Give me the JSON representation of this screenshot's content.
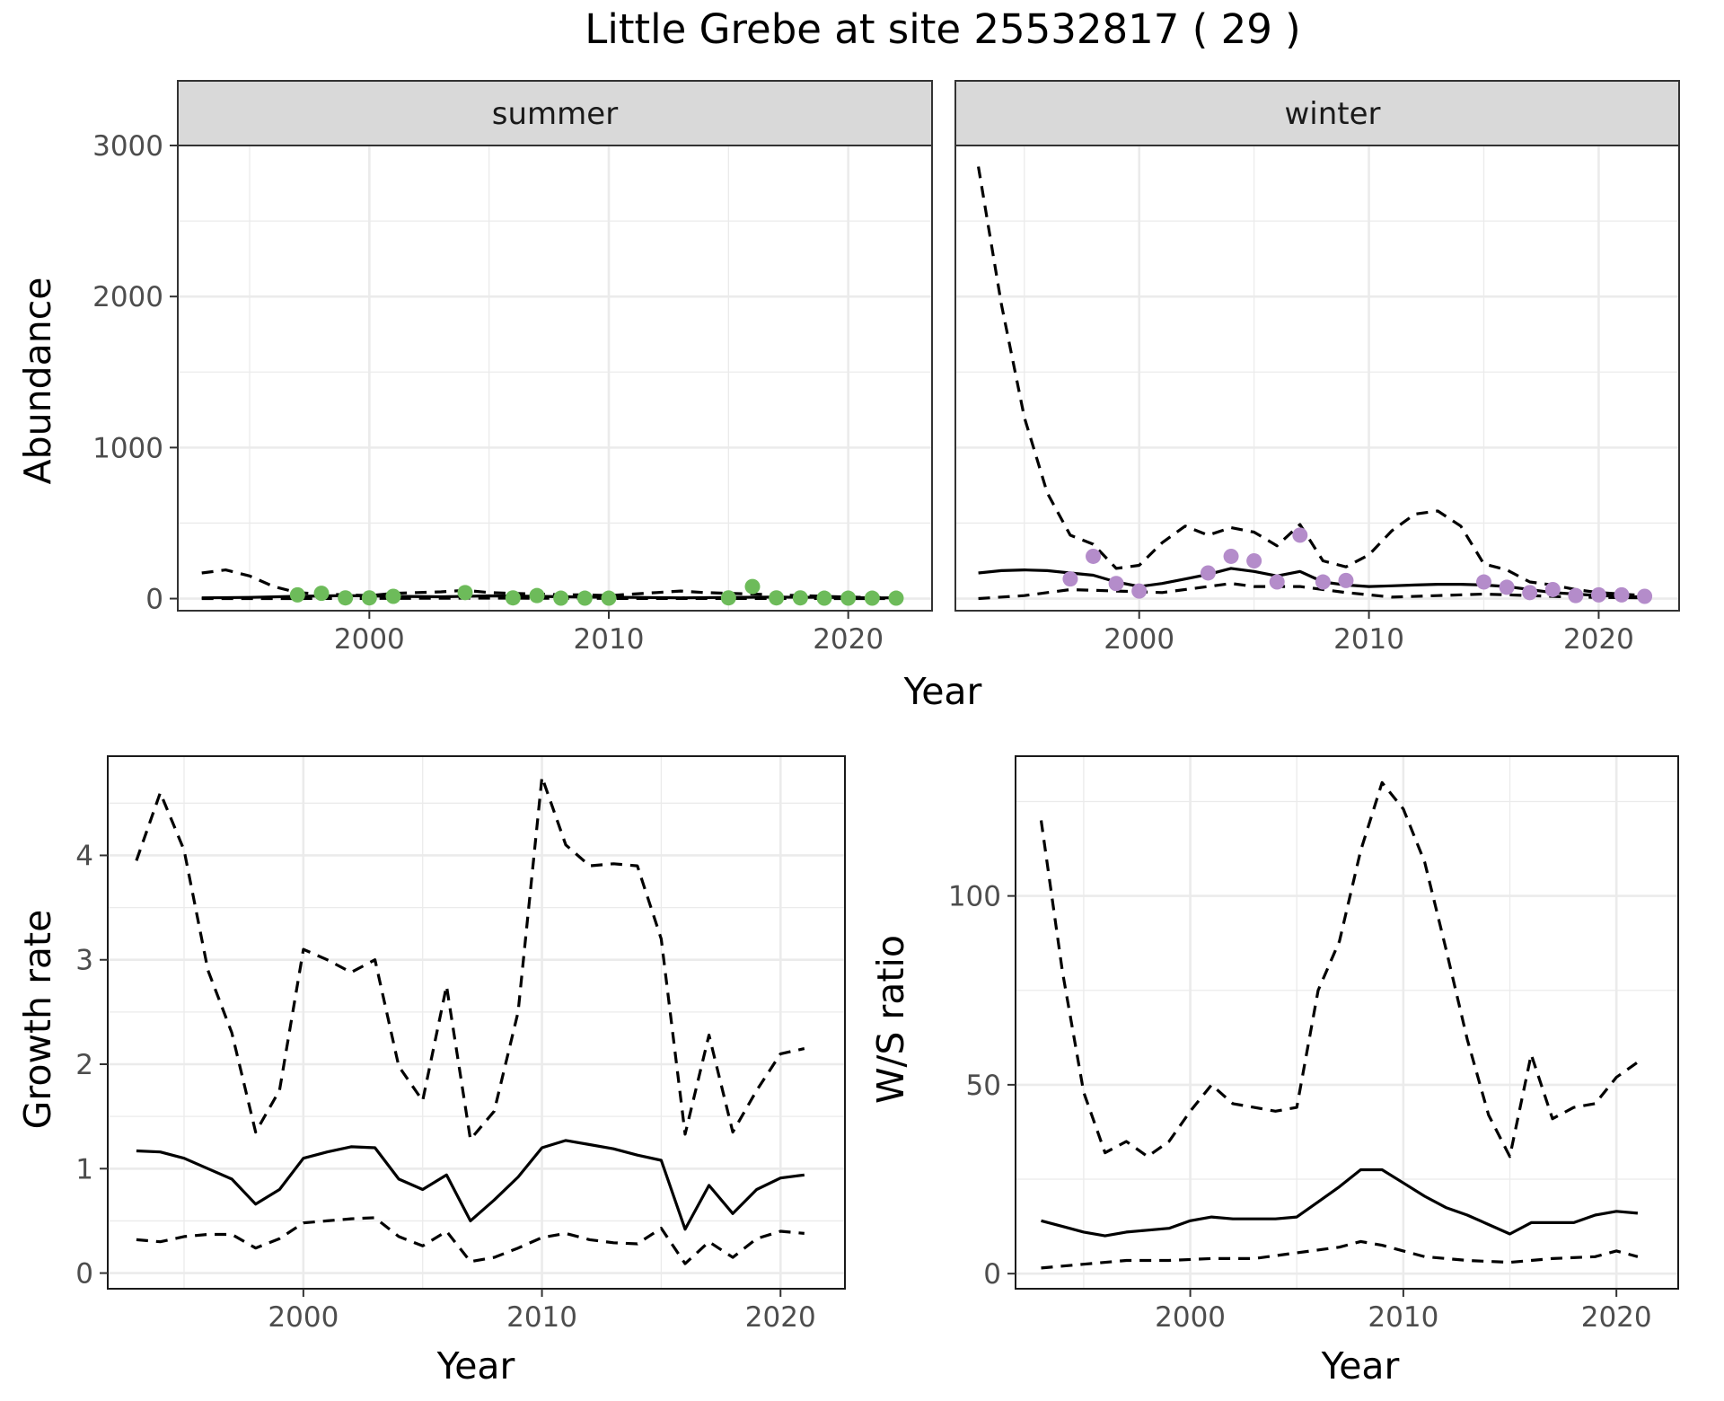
{
  "figure": {
    "title": "Little Grebe at site 25532817 ( 29 )"
  },
  "colors": {
    "summer_points": "#6dbb5a",
    "winter_points": "#b48cca",
    "lines": "#000000",
    "strip_fill": "#d9d9d9",
    "grid": "#ebebeb"
  },
  "chart_data": [
    {
      "id": "abundance-summer",
      "type": "line",
      "facet": "summer",
      "xlabel": "Year",
      "ylabel": "Abundance",
      "xlim": [
        1992,
        2023.5
      ],
      "ylim": [
        -80,
        3000
      ],
      "x_ticks": [
        2000,
        2010,
        2020
      ],
      "y_ticks": [
        0,
        1000,
        2000,
        3000
      ],
      "grid": true,
      "series": [
        {
          "role": "estimate",
          "style": "solid",
          "x": [
            1993,
            1995,
            1997,
            1999,
            2001,
            2003,
            2005,
            2007,
            2009,
            2011,
            2013,
            2015,
            2017,
            2019,
            2021,
            2022
          ],
          "values": [
            5,
            8,
            15,
            20,
            15,
            12,
            18,
            15,
            10,
            8,
            5,
            8,
            10,
            8,
            5,
            5
          ]
        },
        {
          "role": "upper",
          "style": "dashed",
          "x": [
            1993,
            1994,
            1995,
            1996,
            1997,
            1998,
            1999,
            2000,
            2001,
            2002,
            2003,
            2004,
            2005,
            2006,
            2007,
            2008,
            2009,
            2010,
            2011,
            2012,
            2013,
            2014,
            2015,
            2016,
            2017,
            2018,
            2019,
            2020,
            2021,
            2022
          ],
          "values": [
            170,
            190,
            150,
            80,
            40,
            30,
            25,
            20,
            35,
            40,
            45,
            55,
            40,
            35,
            30,
            25,
            25,
            20,
            30,
            40,
            50,
            40,
            35,
            30,
            25,
            20,
            15,
            10,
            8,
            6
          ]
        },
        {
          "role": "lower",
          "style": "dashed",
          "x": [
            1993,
            1996,
            1999,
            2002,
            2005,
            2008,
            2011,
            2014,
            2017,
            2020,
            2022
          ],
          "values": [
            0,
            0,
            1,
            2,
            3,
            2,
            1,
            1,
            1,
            0,
            0
          ]
        },
        {
          "role": "observed",
          "style": "points",
          "x": [
            1997,
            1998,
            1999,
            2000,
            2001,
            2004,
            2006,
            2007,
            2008,
            2009,
            2010,
            2015,
            2016,
            2017,
            2018,
            2019,
            2020,
            2021,
            2022
          ],
          "values": [
            25,
            35,
            5,
            5,
            15,
            40,
            5,
            20,
            3,
            3,
            3,
            5,
            80,
            5,
            5,
            3,
            3,
            3,
            3
          ]
        }
      ]
    },
    {
      "id": "abundance-winter",
      "type": "line",
      "facet": "winter",
      "xlabel": "Year",
      "ylabel": "Abundance",
      "xlim": [
        1992,
        2023.5
      ],
      "ylim": [
        -80,
        3000
      ],
      "x_ticks": [
        2000,
        2010,
        2020
      ],
      "y_ticks": [
        0,
        1000,
        2000,
        3000
      ],
      "grid": true,
      "series": [
        {
          "role": "estimate",
          "style": "solid",
          "x": [
            1993,
            1994,
            1995,
            1996,
            1997,
            1998,
            1999,
            2000,
            2001,
            2002,
            2003,
            2004,
            2005,
            2006,
            2007,
            2008,
            2009,
            2010,
            2011,
            2012,
            2013,
            2014,
            2015,
            2016,
            2017,
            2018,
            2019,
            2020,
            2021,
            2022
          ],
          "values": [
            170,
            185,
            190,
            185,
            170,
            155,
            110,
            80,
            100,
            130,
            160,
            200,
            180,
            150,
            180,
            110,
            90,
            80,
            85,
            90,
            95,
            95,
            90,
            80,
            60,
            40,
            30,
            20,
            15,
            10
          ]
        },
        {
          "role": "upper",
          "style": "dashed",
          "x": [
            1993,
            1994,
            1995,
            1996,
            1997,
            1998,
            1999,
            2000,
            2001,
            2002,
            2003,
            2004,
            2005,
            2006,
            2007,
            2008,
            2009,
            2010,
            2011,
            2012,
            2013,
            2014,
            2015,
            2016,
            2017,
            2018,
            2019,
            2020,
            2021,
            2022
          ],
          "values": [
            2860,
            1950,
            1200,
            700,
            420,
            360,
            200,
            220,
            370,
            480,
            420,
            470,
            440,
            350,
            490,
            250,
            210,
            290,
            450,
            560,
            580,
            480,
            230,
            190,
            110,
            90,
            60,
            40,
            30,
            20
          ]
        },
        {
          "role": "lower",
          "style": "dashed",
          "x": [
            1993,
            1995,
            1997,
            1999,
            2001,
            2003,
            2004,
            2005,
            2007,
            2009,
            2011,
            2013,
            2015,
            2017,
            2019,
            2022
          ],
          "values": [
            0,
            20,
            60,
            50,
            40,
            80,
            100,
            80,
            80,
            40,
            10,
            20,
            30,
            20,
            10,
            5
          ]
        },
        {
          "role": "observed",
          "style": "points",
          "x": [
            1997,
            1998,
            1999,
            2000,
            2003,
            2004,
            2005,
            2006,
            2007,
            2008,
            2009,
            2015,
            2016,
            2017,
            2018,
            2019,
            2020,
            2021,
            2022
          ],
          "values": [
            130,
            280,
            100,
            50,
            170,
            280,
            250,
            110,
            420,
            110,
            120,
            110,
            75,
            40,
            60,
            20,
            25,
            25,
            15
          ]
        }
      ]
    },
    {
      "id": "growth-rate",
      "type": "line",
      "xlabel": "Year",
      "ylabel": "Growth rate",
      "xlim": [
        1991.8,
        2022.7
      ],
      "ylim": [
        -0.15,
        4.95
      ],
      "x_ticks": [
        2000,
        2010,
        2020
      ],
      "y_ticks": [
        0,
        1,
        2,
        3,
        4
      ],
      "grid": true,
      "series": [
        {
          "role": "estimate",
          "style": "solid",
          "x": [
            1993,
            1994,
            1995,
            1996,
            1997,
            1998,
            1999,
            2000,
            2001,
            2002,
            2003,
            2004,
            2005,
            2006,
            2007,
            2008,
            2009,
            2010,
            2011,
            2012,
            2013,
            2014,
            2015,
            2016,
            2017,
            2018,
            2019,
            2020,
            2021
          ],
          "values": [
            1.17,
            1.16,
            1.1,
            1.0,
            0.9,
            0.66,
            0.8,
            1.1,
            1.16,
            1.21,
            1.2,
            0.9,
            0.8,
            0.94,
            0.5,
            0.7,
            0.92,
            1.2,
            1.27,
            1.23,
            1.19,
            1.13,
            1.08,
            0.42,
            0.84,
            0.57,
            0.8,
            0.91,
            0.94
          ]
        },
        {
          "role": "upper",
          "style": "dashed",
          "x": [
            1993,
            1994,
            1995,
            1996,
            1997,
            1998,
            1999,
            2000,
            2001,
            2002,
            2003,
            2004,
            2005,
            2006,
            2007,
            2008,
            2009,
            2010,
            2011,
            2012,
            2013,
            2014,
            2015,
            2016,
            2017,
            2018,
            2019,
            2020,
            2021
          ],
          "values": [
            3.95,
            4.6,
            4.05,
            2.9,
            2.3,
            1.35,
            1.75,
            3.1,
            3.0,
            2.88,
            3.0,
            1.98,
            1.65,
            2.75,
            1.28,
            1.55,
            2.5,
            4.75,
            4.1,
            3.9,
            3.92,
            3.9,
            3.2,
            1.33,
            2.28,
            1.35,
            1.75,
            2.1,
            2.15
          ]
        },
        {
          "role": "lower",
          "style": "dashed",
          "x": [
            1993,
            1994,
            1995,
            1996,
            1997,
            1998,
            1999,
            2000,
            2001,
            2002,
            2003,
            2004,
            2005,
            2006,
            2007,
            2008,
            2009,
            2010,
            2011,
            2012,
            2013,
            2014,
            2015,
            2016,
            2017,
            2018,
            2019,
            2020,
            2021
          ],
          "values": [
            0.32,
            0.3,
            0.35,
            0.37,
            0.37,
            0.24,
            0.33,
            0.48,
            0.5,
            0.52,
            0.53,
            0.35,
            0.26,
            0.4,
            0.11,
            0.15,
            0.24,
            0.34,
            0.38,
            0.32,
            0.29,
            0.28,
            0.43,
            0.09,
            0.3,
            0.15,
            0.33,
            0.4,
            0.38
          ]
        }
      ]
    },
    {
      "id": "ws-ratio",
      "type": "line",
      "xlabel": "Year",
      "ylabel": "W/S ratio",
      "xlim": [
        1991.8,
        2022.9
      ],
      "ylim": [
        -4,
        137
      ],
      "x_ticks": [
        2000,
        2010,
        2020
      ],
      "y_ticks": [
        0,
        50,
        100
      ],
      "grid": true,
      "series": [
        {
          "role": "estimate",
          "style": "solid",
          "x": [
            1993,
            1994,
            1995,
            1996,
            1997,
            1998,
            1999,
            2000,
            2001,
            2002,
            2003,
            2004,
            2005,
            2006,
            2007,
            2008,
            2009,
            2010,
            2011,
            2012,
            2013,
            2014,
            2015,
            2016,
            2017,
            2018,
            2019,
            2020,
            2021
          ],
          "values": [
            14,
            12.5,
            11,
            10,
            11,
            11.5,
            12,
            14,
            15,
            14.5,
            14.5,
            14.5,
            15,
            19,
            23,
            27.5,
            27.5,
            24,
            20.5,
            17.5,
            15.5,
            13,
            10.5,
            13.5,
            13.5,
            13.5,
            15.5,
            16.5,
            16
          ]
        },
        {
          "role": "upper",
          "style": "dashed",
          "x": [
            1993,
            1994,
            1995,
            1996,
            1997,
            1998,
            1999,
            2000,
            2001,
            2002,
            2003,
            2004,
            2005,
            2006,
            2007,
            2008,
            2009,
            2010,
            2011,
            2012,
            2013,
            2014,
            2015,
            2016,
            2017,
            2018,
            2019,
            2020,
            2021
          ],
          "values": [
            120,
            80,
            48,
            32,
            35,
            31,
            35,
            43,
            50,
            45,
            44,
            43,
            44,
            75,
            88,
            112,
            130,
            123,
            109,
            86,
            62,
            42,
            31,
            58,
            41,
            44,
            45,
            52,
            56
          ]
        },
        {
          "role": "lower",
          "style": "dashed",
          "x": [
            1993,
            1995,
            1997,
            1999,
            2001,
            2003,
            2005,
            2007,
            2008,
            2009,
            2011,
            2013,
            2015,
            2017,
            2019,
            2020,
            2021
          ],
          "values": [
            1.5,
            2.5,
            3.5,
            3.5,
            4,
            4,
            5.5,
            7,
            8.5,
            7.5,
            4.5,
            3.5,
            3,
            4,
            4.5,
            6,
            4.5
          ]
        }
      ]
    }
  ]
}
